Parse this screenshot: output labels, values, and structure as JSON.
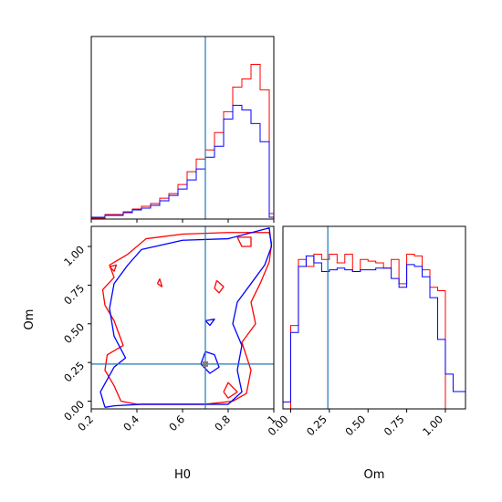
{
  "chart_data": [
    {
      "type": "step",
      "panel": "H0 marginal",
      "x_range": [
        0.2,
        1.0
      ],
      "truth_x": 0.7,
      "tick_values": [
        0.2,
        0.4,
        0.6,
        0.8,
        1.0
      ],
      "y_ticks_shown": false,
      "bin_edges": [
        0.2,
        0.22,
        0.24,
        0.26,
        0.28,
        0.3,
        0.32,
        0.34,
        0.36,
        0.38,
        0.4,
        0.42,
        0.44,
        0.46,
        0.48,
        0.5,
        0.52,
        0.54,
        0.56,
        0.58,
        0.6,
        0.62,
        0.64,
        0.66,
        0.68,
        0.7,
        0.72,
        0.74,
        0.76,
        0.78,
        0.8,
        0.82,
        0.84,
        0.86,
        0.88,
        0.9,
        0.92,
        0.94,
        0.96,
        0.98,
        1.0
      ],
      "series": [
        {
          "color": "#ff0000",
          "values": [
            1,
            1,
            1,
            5,
            5,
            5,
            5,
            8,
            8,
            11,
            11,
            14,
            14,
            17,
            17,
            23,
            23,
            28,
            28,
            38,
            38,
            52,
            52,
            66,
            66,
            76,
            76,
            95,
            95,
            118,
            118,
            145,
            145,
            154,
            154,
            170,
            170,
            142,
            142,
            6
          ]
        },
        {
          "color": "#0000ff",
          "values": [
            2,
            2,
            2,
            4,
            4,
            4,
            4,
            7,
            7,
            10,
            10,
            12,
            12,
            15,
            15,
            20,
            20,
            26,
            26,
            33,
            33,
            43,
            43,
            55,
            55,
            68,
            68,
            80,
            80,
            110,
            110,
            125,
            125,
            120,
            120,
            105,
            105,
            85,
            85,
            2
          ]
        }
      ]
    },
    {
      "type": "step",
      "panel": "Om marginal",
      "x_range": [
        -0.05,
        1.13
      ],
      "truth_x": 0.24,
      "tick_values": [
        0.0,
        0.25,
        0.5,
        0.75,
        1.0
      ],
      "tick_labels": [
        "0.00",
        "0.25",
        "0.50",
        "0.75",
        "1.00"
      ],
      "y_ticks_shown": false,
      "bin_edges": [
        -0.05,
        0.0,
        0.05,
        0.1,
        0.15,
        0.2,
        0.25,
        0.3,
        0.35,
        0.4,
        0.45,
        0.5,
        0.55,
        0.6,
        0.65,
        0.7,
        0.75,
        0.8,
        0.85,
        0.9,
        0.95,
        1.0,
        1.05,
        1.13
      ],
      "series": [
        {
          "color": "#ff0000",
          "values": [
            0,
            48,
            86,
            82,
            89,
            86,
            89,
            84,
            89,
            79,
            86,
            85,
            84,
            81,
            86,
            72,
            89,
            88,
            80,
            70,
            68,
            0,
            0
          ]
        },
        {
          "color": "#0000ff",
          "values": [
            4,
            44,
            82,
            88,
            84,
            79,
            80,
            81,
            80,
            79,
            80,
            80,
            81,
            81,
            75,
            70,
            83,
            82,
            76,
            64,
            40,
            20,
            10
          ]
        }
      ]
    },
    {
      "type": "contour",
      "panel": "H0 vs Om",
      "xlabel": "H0",
      "ylabel": "Om",
      "x_range": [
        0.2,
        1.0
      ],
      "y_range": [
        -0.05,
        1.13
      ],
      "x_ticks": [
        0.2,
        0.4,
        0.6,
        0.8,
        1.0
      ],
      "y_ticks": [
        0.0,
        0.25,
        0.5,
        0.75,
        1.0
      ],
      "y_tick_labels": [
        "0.00",
        "0.25",
        "0.50",
        "0.75",
        "1.00"
      ],
      "truth": {
        "x": 0.7,
        "y": 0.24
      },
      "series": [
        {
          "color": "#ff0000",
          "contours": [
            [
              [
                0.33,
                0.0
              ],
              [
                0.3,
                0.1
              ],
              [
                0.26,
                0.2
              ],
              [
                0.27,
                0.3
              ],
              [
                0.34,
                0.36
              ],
              [
                0.3,
                0.52
              ],
              [
                0.26,
                0.62
              ],
              [
                0.25,
                0.72
              ],
              [
                0.3,
                0.8
              ],
              [
                0.28,
                0.88
              ],
              [
                0.36,
                0.95
              ],
              [
                0.44,
                1.05
              ],
              [
                0.6,
                1.08
              ],
              [
                0.8,
                1.09
              ],
              [
                0.98,
                1.09
              ],
              [
                0.99,
                1.02
              ],
              [
                0.98,
                0.9
              ],
              [
                0.94,
                0.76
              ],
              [
                0.9,
                0.64
              ],
              [
                0.92,
                0.5
              ],
              [
                0.86,
                0.38
              ],
              [
                0.9,
                0.2
              ],
              [
                0.88,
                0.05
              ],
              [
                0.82,
                0.0
              ],
              [
                0.7,
                -0.02
              ],
              [
                0.55,
                -0.02
              ],
              [
                0.4,
                -0.02
              ],
              [
                0.33,
                0.0
              ]
            ],
            [
              [
                0.84,
                1.06
              ],
              [
                0.86,
                1.0
              ],
              [
                0.9,
                1.0
              ],
              [
                0.9,
                1.06
              ],
              [
                0.84,
                1.06
              ]
            ],
            [
              [
                0.28,
                0.87
              ],
              [
                0.3,
                0.84
              ],
              [
                0.31,
                0.88
              ],
              [
                0.28,
                0.87
              ]
            ],
            [
              [
                0.49,
                0.76
              ],
              [
                0.51,
                0.74
              ],
              [
                0.5,
                0.79
              ],
              [
                0.49,
                0.76
              ]
            ],
            [
              [
                0.75,
                0.78
              ],
              [
                0.78,
                0.74
              ],
              [
                0.76,
                0.7
              ],
              [
                0.74,
                0.73
              ],
              [
                0.75,
                0.78
              ]
            ],
            [
              [
                0.78,
                0.06
              ],
              [
                0.8,
                0.02
              ],
              [
                0.84,
                0.06
              ],
              [
                0.8,
                0.12
              ],
              [
                0.78,
                0.06
              ]
            ]
          ]
        },
        {
          "color": "#0000ff",
          "contours": [
            [
              [
                0.26,
                -0.04
              ],
              [
                0.24,
                0.06
              ],
              [
                0.3,
                0.22
              ],
              [
                0.35,
                0.28
              ],
              [
                0.3,
                0.42
              ],
              [
                0.28,
                0.6
              ],
              [
                0.3,
                0.76
              ],
              [
                0.36,
                0.88
              ],
              [
                0.42,
                0.98
              ],
              [
                0.6,
                1.04
              ],
              [
                0.8,
                1.05
              ],
              [
                0.98,
                1.12
              ],
              [
                0.99,
                1.0
              ],
              [
                0.96,
                0.88
              ],
              [
                0.92,
                0.8
              ],
              [
                0.84,
                0.64
              ],
              [
                0.82,
                0.5
              ],
              [
                0.86,
                0.36
              ],
              [
                0.84,
                0.2
              ],
              [
                0.86,
                0.06
              ],
              [
                0.8,
                -0.02
              ],
              [
                0.6,
                -0.02
              ],
              [
                0.42,
                -0.02
              ],
              [
                0.3,
                -0.03
              ],
              [
                0.26,
                -0.04
              ]
            ],
            [
              [
                0.7,
                0.32
              ],
              [
                0.68,
                0.24
              ],
              [
                0.72,
                0.18
              ],
              [
                0.76,
                0.22
              ],
              [
                0.74,
                0.3
              ],
              [
                0.7,
                0.32
              ]
            ],
            [
              [
                0.7,
                0.52
              ],
              [
                0.72,
                0.49
              ],
              [
                0.74,
                0.53
              ],
              [
                0.7,
                0.52
              ]
            ]
          ]
        }
      ]
    }
  ]
}
